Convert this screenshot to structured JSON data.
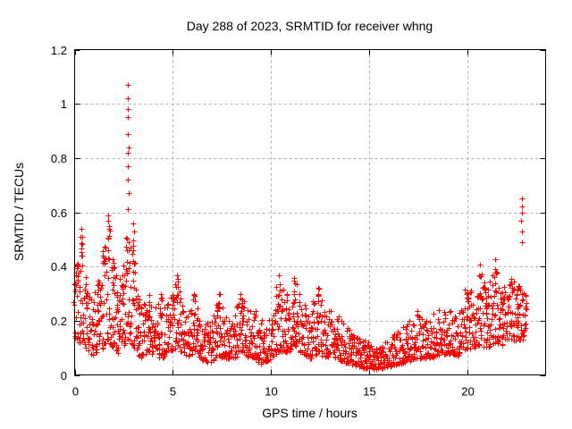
{
  "chart_data": {
    "type": "scatter",
    "title": "Day 288 of 2023, SRMTID for receiver whng",
    "xlabel": "GPS time / hours",
    "ylabel": "SRMTID / TECUs",
    "xlim": [
      0,
      24
    ],
    "ylim": [
      0,
      1.2
    ],
    "xticks": [
      0,
      5,
      10,
      15,
      20
    ],
    "xtick_labels": [
      "0",
      "5",
      "10",
      "15",
      "20"
    ],
    "yticks": [
      0,
      0.2,
      0.4,
      0.6,
      0.8,
      1,
      1.2
    ],
    "ytick_labels": [
      "0",
      "0.2",
      "0.4",
      "0.6",
      "0.8",
      "1",
      "1.2"
    ],
    "grid": true,
    "grid_style": "dashed",
    "grid_color": "#b0b0b0",
    "border_color": "#000000",
    "legend": "none",
    "marker": {
      "symbol": "+",
      "color": "#ff0000",
      "size": 7
    },
    "x_data_range": [
      0,
      23.0
    ],
    "envelope_keyframes_t_lo_hi": [
      [
        0.0,
        0.14,
        0.34
      ],
      [
        0.15,
        0.12,
        0.42
      ],
      [
        0.35,
        0.1,
        0.52
      ],
      [
        0.6,
        0.1,
        0.35
      ],
      [
        0.9,
        0.07,
        0.28
      ],
      [
        1.2,
        0.09,
        0.35
      ],
      [
        1.5,
        0.1,
        0.48
      ],
      [
        1.75,
        0.12,
        0.58
      ],
      [
        1.95,
        0.1,
        0.45
      ],
      [
        2.2,
        0.08,
        0.32
      ],
      [
        2.45,
        0.1,
        0.4
      ],
      [
        2.7,
        0.13,
        0.56
      ],
      [
        3.0,
        0.1,
        0.52
      ],
      [
        3.25,
        0.06,
        0.3
      ],
      [
        3.5,
        0.07,
        0.26
      ],
      [
        3.8,
        0.08,
        0.3
      ],
      [
        4.1,
        0.07,
        0.26
      ],
      [
        4.4,
        0.06,
        0.31
      ],
      [
        4.7,
        0.07,
        0.26
      ],
      [
        5.0,
        0.09,
        0.3
      ],
      [
        5.2,
        0.1,
        0.38
      ],
      [
        5.5,
        0.08,
        0.26
      ],
      [
        5.8,
        0.07,
        0.24
      ],
      [
        6.1,
        0.08,
        0.3
      ],
      [
        6.4,
        0.06,
        0.22
      ],
      [
        6.9,
        0.04,
        0.18
      ],
      [
        7.3,
        0.07,
        0.33
      ],
      [
        7.7,
        0.06,
        0.22
      ],
      [
        8.1,
        0.06,
        0.24
      ],
      [
        8.5,
        0.08,
        0.3
      ],
      [
        9.0,
        0.06,
        0.28
      ],
      [
        9.5,
        0.04,
        0.2
      ],
      [
        10.0,
        0.06,
        0.24
      ],
      [
        10.4,
        0.08,
        0.38
      ],
      [
        10.8,
        0.08,
        0.3
      ],
      [
        11.2,
        0.1,
        0.36
      ],
      [
        11.6,
        0.08,
        0.28
      ],
      [
        12.0,
        0.06,
        0.24
      ],
      [
        12.4,
        0.08,
        0.33
      ],
      [
        12.8,
        0.06,
        0.22
      ],
      [
        13.2,
        0.07,
        0.28
      ],
      [
        13.6,
        0.05,
        0.2
      ],
      [
        14.0,
        0.04,
        0.17
      ],
      [
        14.5,
        0.03,
        0.14
      ],
      [
        15.0,
        0.02,
        0.12
      ],
      [
        15.5,
        0.02,
        0.1
      ],
      [
        16.0,
        0.03,
        0.13
      ],
      [
        16.5,
        0.04,
        0.17
      ],
      [
        17.0,
        0.05,
        0.2
      ],
      [
        17.5,
        0.06,
        0.24
      ],
      [
        18.0,
        0.06,
        0.22
      ],
      [
        18.5,
        0.07,
        0.24
      ],
      [
        19.0,
        0.08,
        0.26
      ],
      [
        19.5,
        0.07,
        0.22
      ],
      [
        20.0,
        0.1,
        0.36
      ],
      [
        20.35,
        0.09,
        0.28
      ],
      [
        20.65,
        0.11,
        0.42
      ],
      [
        21.0,
        0.09,
        0.3
      ],
      [
        21.45,
        0.12,
        0.44
      ],
      [
        21.8,
        0.11,
        0.32
      ],
      [
        22.2,
        0.13,
        0.36
      ],
      [
        22.6,
        0.12,
        0.33
      ],
      [
        23.0,
        0.14,
        0.3
      ]
    ],
    "outlier_points_t_value": [
      [
        2.7,
        1.07
      ],
      [
        2.72,
        1.02
      ],
      [
        2.71,
        0.98
      ],
      [
        2.73,
        0.95
      ],
      [
        2.72,
        0.89
      ],
      [
        2.74,
        0.84
      ],
      [
        2.71,
        0.82
      ],
      [
        2.73,
        0.77
      ],
      [
        2.72,
        0.72
      ],
      [
        2.74,
        0.67
      ],
      [
        2.72,
        0.61
      ],
      [
        1.7,
        0.59
      ],
      [
        1.73,
        0.57
      ],
      [
        1.76,
        0.55
      ],
      [
        0.33,
        0.54
      ],
      [
        0.38,
        0.51
      ],
      [
        3.0,
        0.56
      ],
      [
        3.03,
        0.53
      ],
      [
        22.78,
        0.65
      ],
      [
        22.78,
        0.62
      ],
      [
        22.8,
        0.6
      ],
      [
        22.77,
        0.57
      ],
      [
        22.79,
        0.53
      ],
      [
        22.78,
        0.49
      ]
    ],
    "synthesis": {
      "seed": 42,
      "n_points": 1800,
      "bias_exponent": 1.6,
      "time_jitter_h": 0.05,
      "column_threshold": 0.3,
      "column_extra_points": 6
    }
  }
}
